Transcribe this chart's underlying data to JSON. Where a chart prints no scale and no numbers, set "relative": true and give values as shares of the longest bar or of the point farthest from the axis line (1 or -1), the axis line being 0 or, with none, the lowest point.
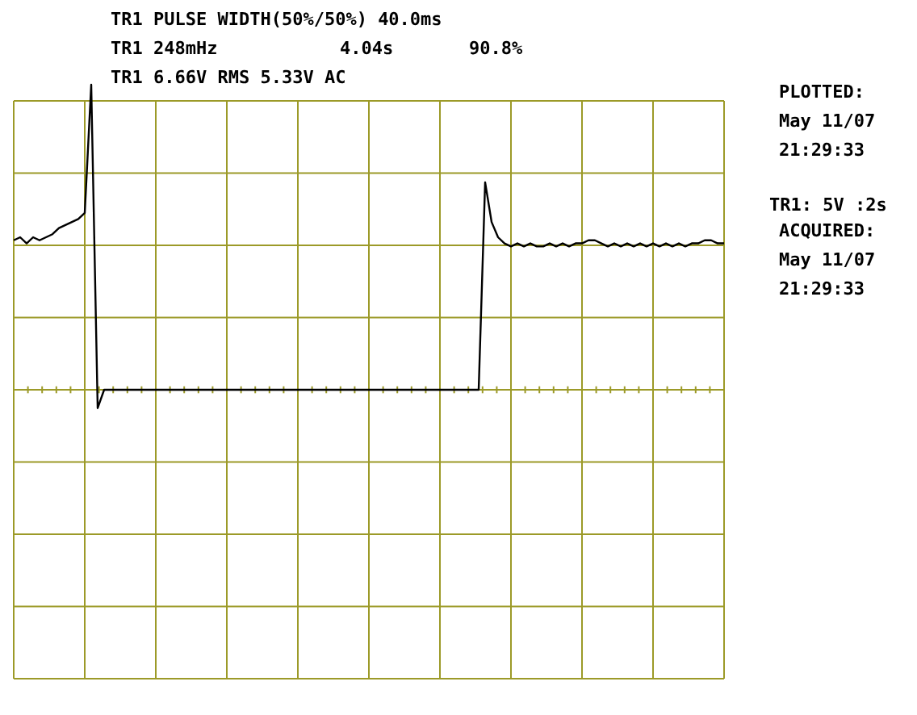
{
  "chart_data": {
    "type": "line",
    "relative": true,
    "title": "TR1 PULSE WIDTH(50%/50%) 40.0ms",
    "annotations": [
      "TR1 248mHz",
      "4.04s",
      "90.8%",
      "TR1 6.66V RMS 5.33V AC",
      "PLOTTED:",
      "May 11/07",
      "21:29:33",
      "TR1:   5V :2s",
      "ACQUIRED:",
      "May 11/07",
      "21:29:33"
    ],
    "categories": [
      null,
      null,
      null,
      null,
      null,
      null,
      null,
      null,
      null,
      null,
      null,
      null,
      null,
      null,
      null,
      null,
      null,
      null,
      null,
      null,
      null,
      null,
      null,
      null,
      null,
      null,
      null,
      null,
      null,
      null,
      null,
      null,
      null,
      null,
      null,
      null,
      null,
      null,
      null,
      null,
      null,
      null,
      null,
      null,
      null,
      null,
      null,
      null,
      null,
      null,
      null,
      null,
      null,
      null,
      null,
      null,
      null,
      null,
      null,
      null,
      null,
      null,
      null,
      null,
      null,
      null,
      null,
      null,
      null,
      null,
      null,
      null,
      null,
      null,
      null,
      null,
      null,
      null,
      null,
      null,
      null,
      null,
      null,
      null,
      null,
      null,
      null,
      null,
      null,
      null,
      null,
      null,
      null,
      null,
      null,
      null,
      null,
      null,
      null,
      null,
      null,
      null,
      null,
      null,
      null,
      null,
      null,
      null,
      null,
      null,
      null
    ],
    "series": [
      {
        "color": "#000000",
        "values": [
          0.49,
          0.5,
          0.48,
          0.5,
          0.49,
          0.5,
          0.51,
          0.53,
          0.54,
          0.55,
          0.56,
          0.58,
          1.0,
          -0.06,
          0,
          0,
          0,
          0,
          0,
          0,
          0,
          0,
          0,
          0,
          0,
          0,
          0,
          0,
          0,
          0,
          0,
          0,
          0,
          0,
          0,
          0,
          0,
          0,
          0,
          0,
          0,
          0,
          0,
          0,
          0,
          0,
          0,
          0,
          0,
          0,
          0,
          0,
          0,
          0,
          0,
          0,
          0,
          0,
          0,
          0,
          0,
          0,
          0,
          0,
          0,
          0,
          0,
          0,
          0,
          0,
          0,
          0,
          0,
          0.68,
          0.55,
          0.5,
          0.48,
          0.47,
          0.48,
          0.47,
          0.48,
          0.47,
          0.47,
          0.48,
          0.47,
          0.48,
          0.47,
          0.48,
          0.48,
          0.49,
          0.49,
          0.48,
          0.47,
          0.48,
          0.47,
          0.48,
          0.47,
          0.48,
          0.47,
          0.48,
          0.47,
          0.48,
          0.47,
          0.48,
          0.47,
          0.48,
          0.48,
          0.49,
          0.49,
          0.48,
          0.48
        ]
      }
    ],
    "grid": true,
    "marker": "none",
    "line_style": "solid",
    "tick_labels": false
  }
}
